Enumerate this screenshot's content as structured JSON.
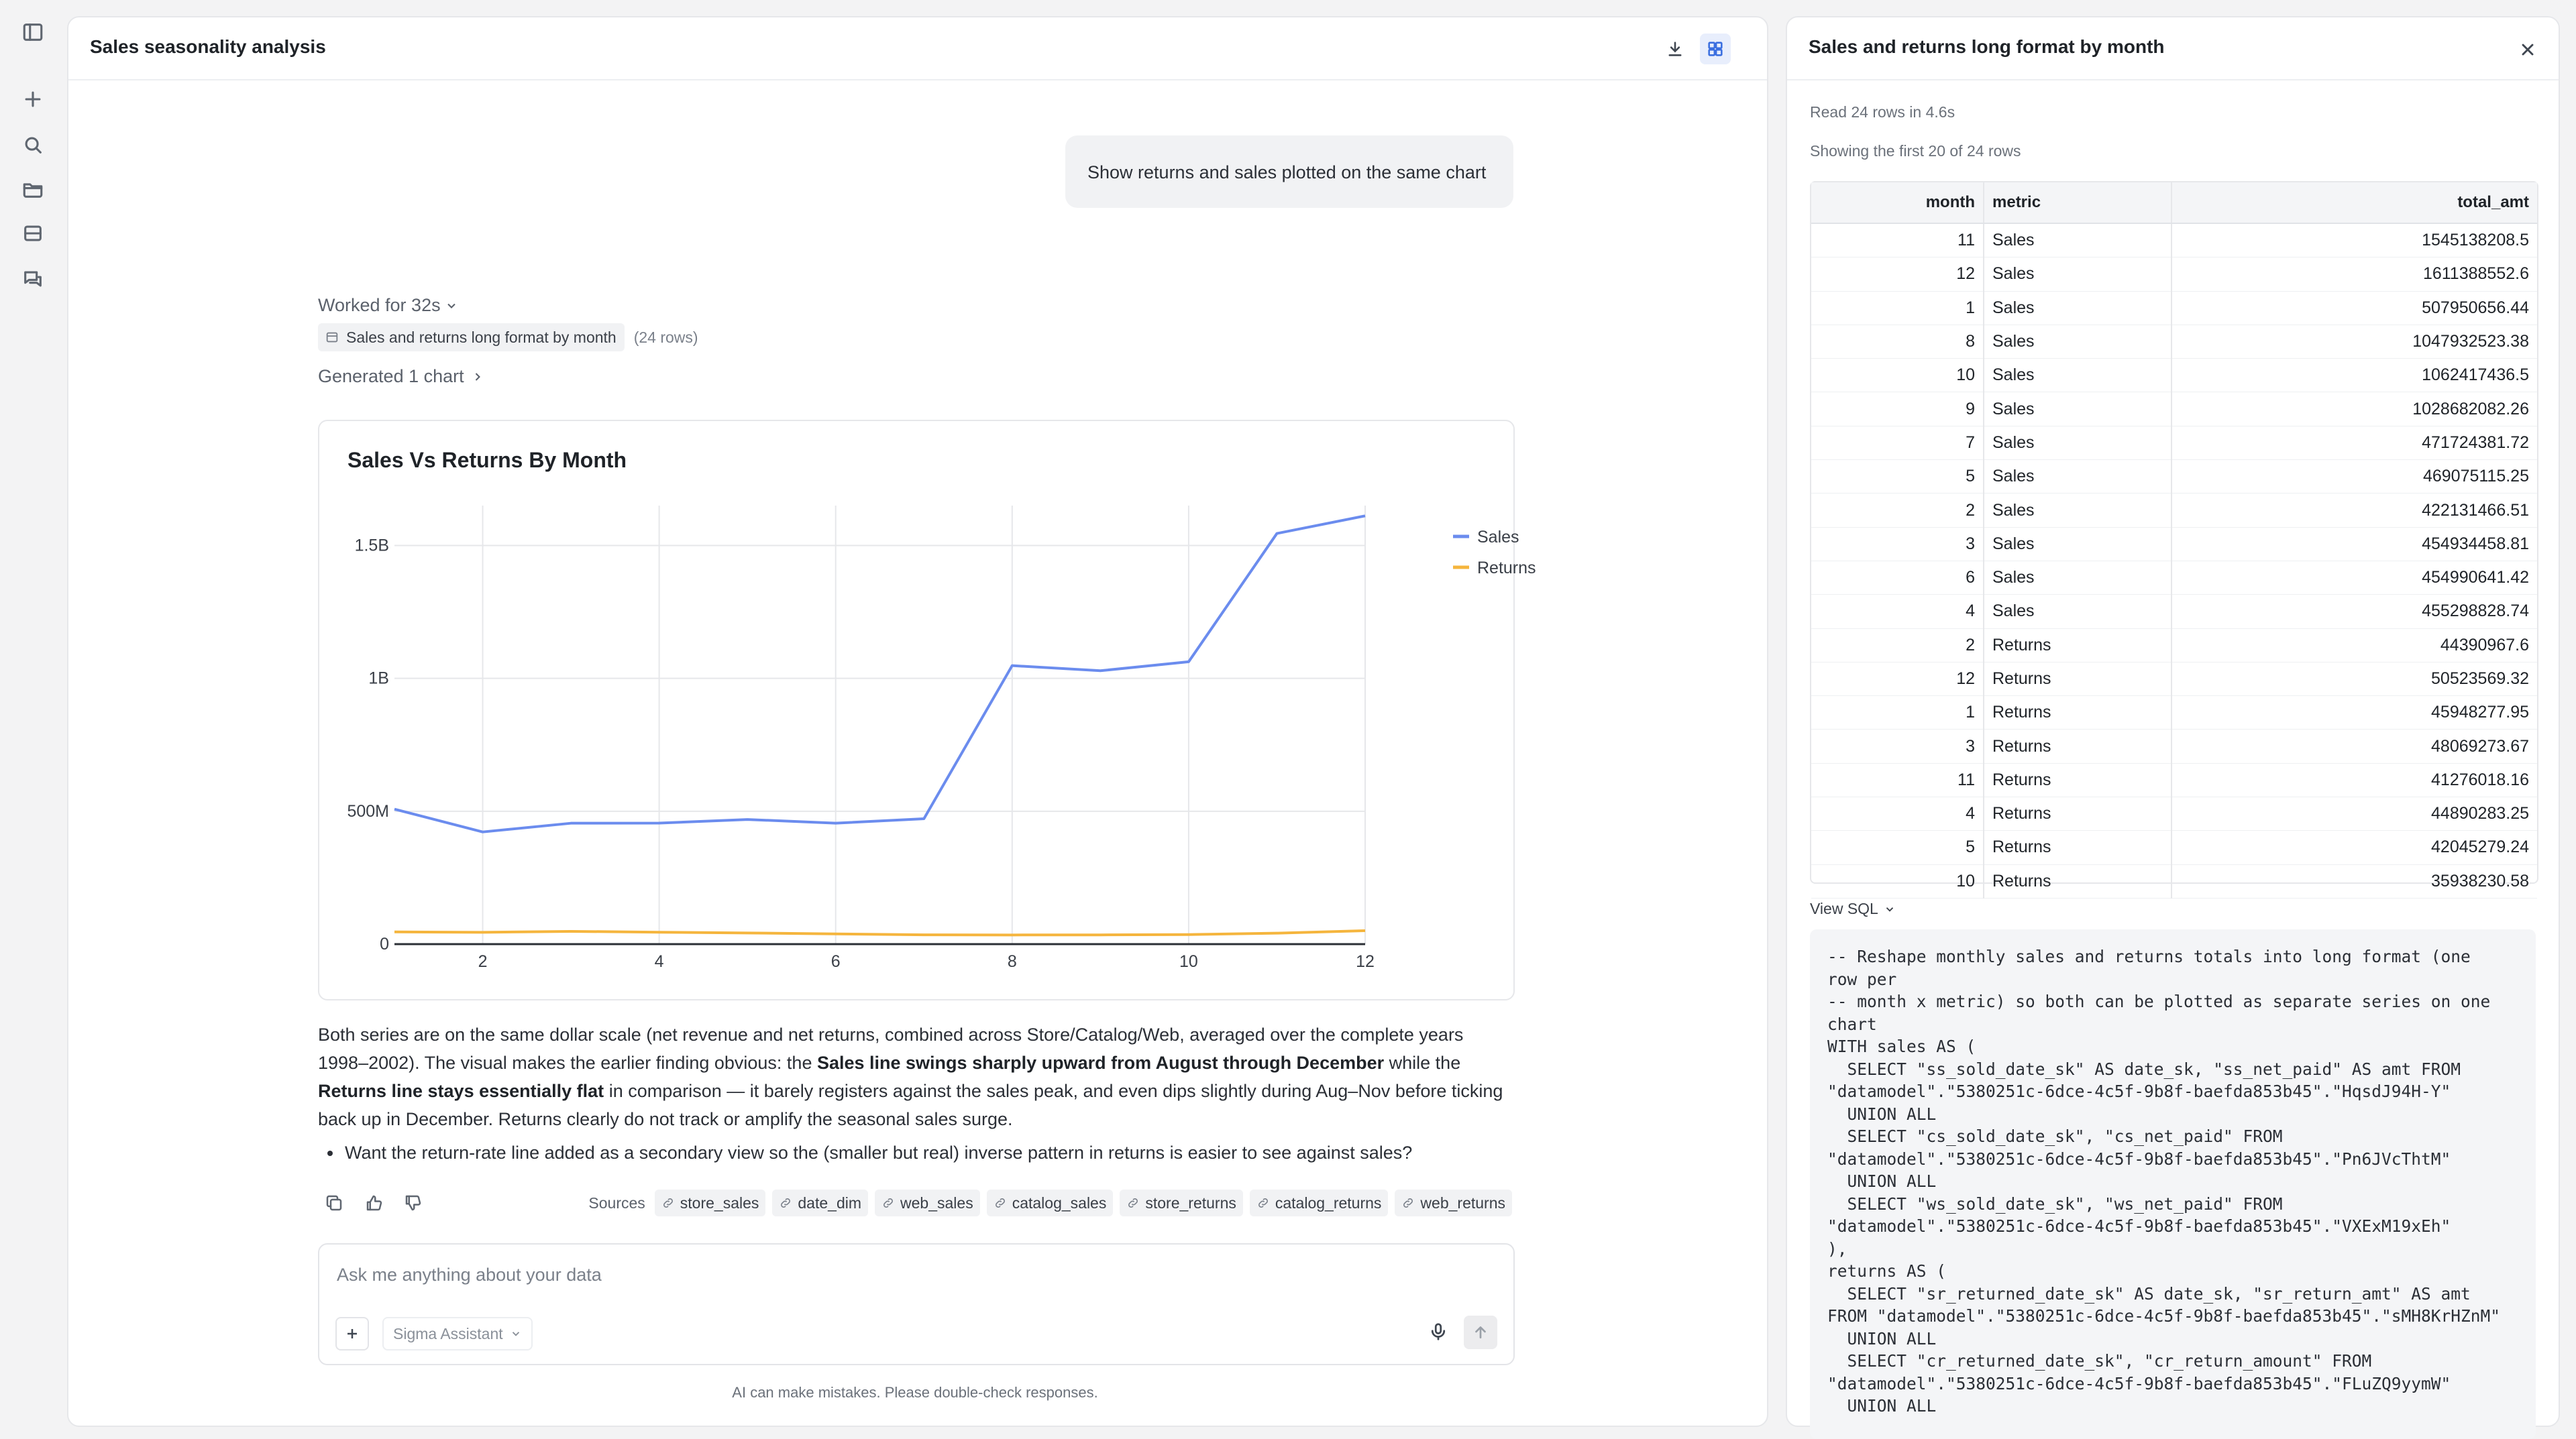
{
  "icons": {
    "rail": [
      "sidebar-toggle-icon",
      "plus-icon",
      "search-icon",
      "folder-icon",
      "database-icon",
      "chat-icon"
    ],
    "header": [
      "download-icon",
      "grid-icon"
    ]
  },
  "colors": {
    "sales": "#6b8cee",
    "returns": "#f5b53d",
    "accent": "#3b6fe0"
  },
  "left_panel": {
    "title": "Sales seasonality analysis"
  },
  "user_message": "Show returns and sales plotted on the same chart",
  "work": {
    "worked_label": "Worked for 32s",
    "source_chip_label": "Sales and returns long format by month",
    "source_chip_count": "(24 rows)",
    "generated_label": "Generated 1 chart"
  },
  "chart_data": {
    "type": "line",
    "title": "Sales Vs Returns By Month",
    "x": [
      1,
      2,
      3,
      4,
      5,
      6,
      7,
      8,
      9,
      10,
      11,
      12
    ],
    "series": [
      {
        "name": "Sales",
        "values": [
          507950656.44,
          422131466.51,
          454934458.81,
          455298828.74,
          469075115.25,
          454990641.42,
          471724381.72,
          1047932523.38,
          1028682082.26,
          1062417436.5,
          1545138208.5,
          1611388552.6
        ]
      },
      {
        "name": "Returns",
        "values": [
          45948277.95,
          44390967.6,
          48069273.67,
          44890283.25,
          42045279.24,
          38500000,
          35000000,
          34500000,
          34800000,
          35938230.58,
          41276018.16,
          50523569.32
        ]
      }
    ],
    "xticks": [
      "2",
      "4",
      "6",
      "8",
      "10",
      "12"
    ],
    "yticks": [
      "0",
      "500M",
      "1B",
      "1.5B"
    ],
    "ylim": [
      0,
      1650000000
    ],
    "xlim": [
      1,
      12
    ],
    "grid": true,
    "legend": "top-right"
  },
  "answer": {
    "p1": "Both series are on the same dollar scale (net revenue and net returns, combined across Store/Catalog/Web, averaged over the complete years 1998–2002). The visual makes the earlier finding obvious: the ",
    "p1_bold1": "Sales line swings sharply upward from August through December",
    "p1_mid": " while the ",
    "p1_bold2": "Returns line stays essentially flat",
    "p1_end": " in comparison — it barely registers against the sales peak, and even dips slightly during Aug–Nov before ticking back up in December. Returns clearly do not track or amplify the seasonal sales surge.",
    "bullet": "Want the return-rate line added as a secondary view so the (smaller but real) inverse pattern in returns is easier to see against sales?"
  },
  "sources": {
    "label": "Sources",
    "items": [
      "store_sales",
      "date_dim",
      "web_sales",
      "catalog_sales",
      "store_returns",
      "catalog_returns",
      "web_returns"
    ]
  },
  "composer": {
    "placeholder": "Ask me anything about your data",
    "assistant": "Sigma Assistant",
    "disclaimer": "AI can make mistakes. Please double-check responses."
  },
  "right_panel": {
    "title": "Sales and returns long format by month",
    "read_info": "Read 24 rows in 4.6s",
    "showing_info": "Showing the first 20 of 24 rows",
    "columns": [
      "month",
      "metric",
      "total_amt"
    ],
    "rows": [
      [
        "11",
        "Sales",
        "1545138208.5"
      ],
      [
        "12",
        "Sales",
        "1611388552.6"
      ],
      [
        "1",
        "Sales",
        "507950656.44"
      ],
      [
        "8",
        "Sales",
        "1047932523.38"
      ],
      [
        "10",
        "Sales",
        "1062417436.5"
      ],
      [
        "9",
        "Sales",
        "1028682082.26"
      ],
      [
        "7",
        "Sales",
        "471724381.72"
      ],
      [
        "5",
        "Sales",
        "469075115.25"
      ],
      [
        "2",
        "Sales",
        "422131466.51"
      ],
      [
        "3",
        "Sales",
        "454934458.81"
      ],
      [
        "6",
        "Sales",
        "454990641.42"
      ],
      [
        "4",
        "Sales",
        "455298828.74"
      ],
      [
        "2",
        "Returns",
        "44390967.6"
      ],
      [
        "12",
        "Returns",
        "50523569.32"
      ],
      [
        "1",
        "Returns",
        "45948277.95"
      ],
      [
        "3",
        "Returns",
        "48069273.67"
      ],
      [
        "11",
        "Returns",
        "41276018.16"
      ],
      [
        "4",
        "Returns",
        "44890283.25"
      ],
      [
        "5",
        "Returns",
        "42045279.24"
      ],
      [
        "10",
        "Returns",
        "35938230.58"
      ]
    ],
    "view_sql_label": "View SQL",
    "sql": "-- Reshape monthly sales and returns totals into long format (one\nrow per\n-- month x metric) so both can be plotted as separate series on one\nchart\nWITH sales AS (\n  SELECT \"ss_sold_date_sk\" AS date_sk, \"ss_net_paid\" AS amt FROM\n\"datamodel\".\"5380251c-6dce-4c5f-9b8f-baefda853b45\".\"HqsdJ94H-Y\"\n  UNION ALL\n  SELECT \"cs_sold_date_sk\", \"cs_net_paid\" FROM\n\"datamodel\".\"5380251c-6dce-4c5f-9b8f-baefda853b45\".\"Pn6JVcThtM\"\n  UNION ALL\n  SELECT \"ws_sold_date_sk\", \"ws_net_paid\" FROM\n\"datamodel\".\"5380251c-6dce-4c5f-9b8f-baefda853b45\".\"VXExM19xEh\"\n),\nreturns AS (\n  SELECT \"sr_returned_date_sk\" AS date_sk, \"sr_return_amt\" AS amt\nFROM \"datamodel\".\"5380251c-6dce-4c5f-9b8f-baefda853b45\".\"sMH8KrHZnM\"\n  UNION ALL\n  SELECT \"cr_returned_date_sk\", \"cr_return_amount\" FROM\n\"datamodel\".\"5380251c-6dce-4c5f-9b8f-baefda853b45\".\"FLuZQ9yymW\"\n  UNION ALL"
  }
}
